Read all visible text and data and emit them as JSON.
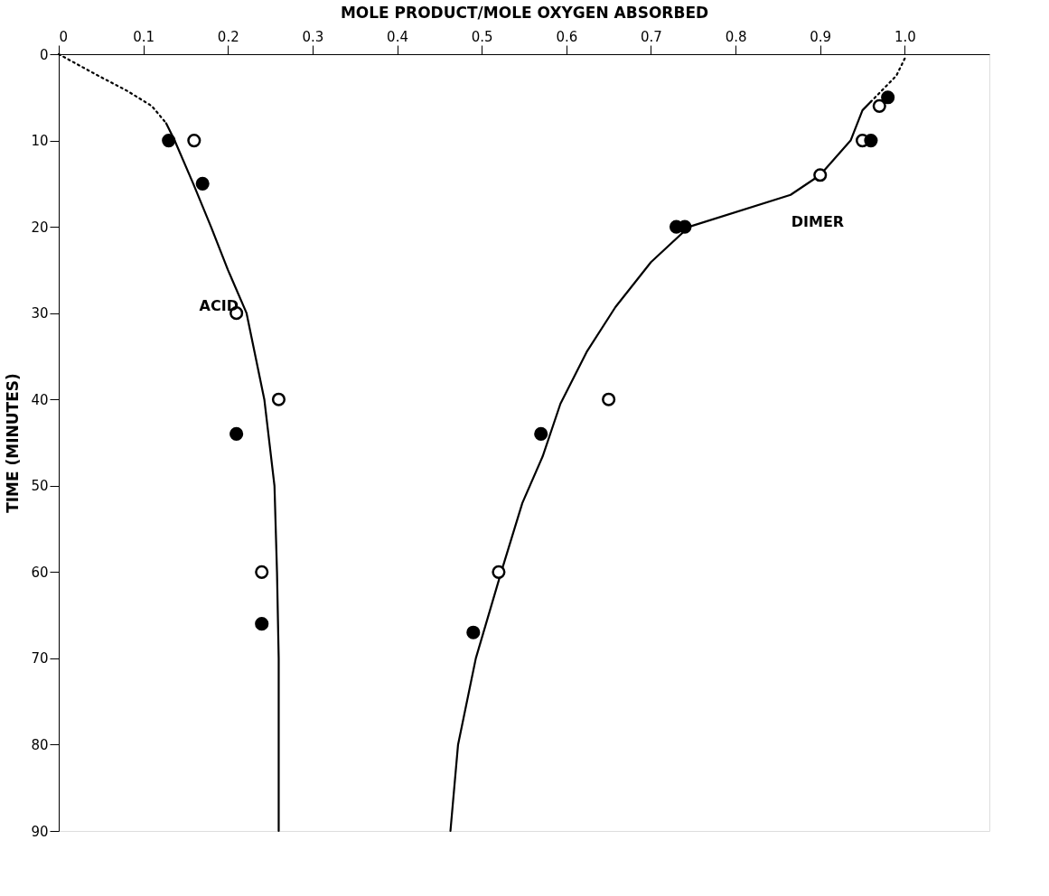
{
  "chart_data": {
    "type": "line",
    "xlabel": "MOLE PRODUCT/MOLE OXYGEN ABSORBED",
    "ylabel": "TIME (MINUTES)",
    "xlim": [
      0,
      1.1
    ],
    "xticks": [
      0,
      0.1,
      0.2,
      0.3,
      0.4,
      0.5,
      0.6,
      0.7,
      0.8,
      0.9,
      {
        "value": 1,
        "label": "1.0"
      }
    ],
    "ylim": [
      90,
      0
    ],
    "yticks": [
      0,
      10,
      20,
      30,
      40,
      50,
      60,
      70,
      80,
      90
    ],
    "grid": false,
    "annotations": [
      "ACID",
      "DIMER"
    ],
    "series": [
      {
        "line_style": "dotted",
        "color": "#000000",
        "x": [
          0,
          0.043,
          0.08,
          0.11,
          0.127
        ],
        "values": [
          0,
          2.3,
          4.2,
          6,
          8
        ]
      },
      {
        "line_style": "solid",
        "color": "#000000",
        "x": [
          0.127,
          0.137,
          0.159,
          0.18,
          0.2,
          0.222,
          0.243,
          0.255,
          0.258,
          0.26,
          0.26
        ],
        "values": [
          8,
          10,
          15,
          20,
          25,
          30,
          40,
          50,
          60,
          70,
          90
        ]
      },
      {
        "type": "scatter",
        "marker": "circle",
        "color": "#ffffff",
        "x": [
          0.16,
          0.21,
          0.26,
          0.24
        ],
        "values": [
          10,
          30,
          40,
          60
        ]
      },
      {
        "type": "scatter",
        "marker": "circle",
        "color": "#000000",
        "x": [
          0.13,
          0.17,
          0.21,
          0.24
        ],
        "values": [
          10,
          15,
          44,
          66
        ]
      },
      {
        "line_style": "dotted",
        "color": "#000000",
        "x": [
          1.0,
          0.99,
          0.975,
          0.96
        ],
        "values": [
          0.5,
          2.5,
          4,
          5.5
        ]
      },
      {
        "line_style": "solid",
        "color": "#000000",
        "x": [
          0.96,
          0.95,
          0.936,
          0.9,
          0.865,
          0.745,
          0.7,
          0.658,
          0.624,
          0.593,
          0.572,
          0.548,
          0.523,
          0.493,
          0.472,
          0.463
        ],
        "values": [
          5.5,
          6.5,
          10,
          14,
          16.3,
          20,
          24.1,
          29.3,
          34.5,
          40.5,
          46.6,
          52,
          60,
          70,
          80,
          90
        ]
      },
      {
        "type": "scatter",
        "marker": "circle",
        "color": "#ffffff",
        "x": [
          0.97,
          0.95,
          0.9,
          0.65,
          0.52
        ],
        "values": [
          6,
          10,
          14,
          40,
          60
        ]
      },
      {
        "type": "scatter",
        "marker": "circle",
        "color": "#000000",
        "x": [
          0.98,
          0.96,
          0.73,
          0.74,
          0.57,
          0.49
        ],
        "values": [
          5,
          10,
          20,
          20,
          44,
          67
        ]
      }
    ]
  }
}
